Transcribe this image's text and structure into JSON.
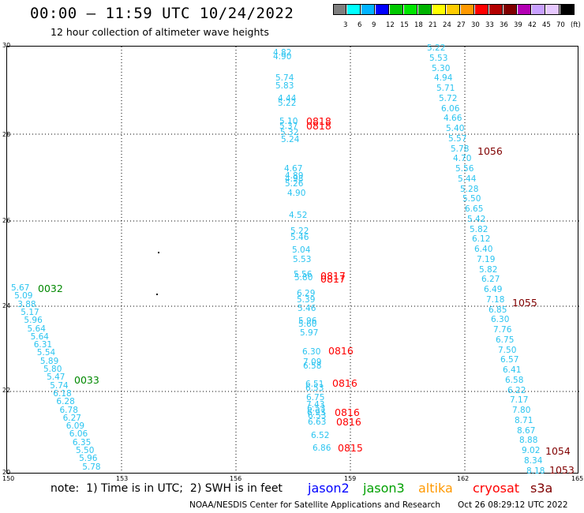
{
  "header": {
    "title": "00:00 – 11:59 UTC 10/24/2022",
    "subtitle": "12 hour collection of altimeter wave heights"
  },
  "legend": {
    "colors": [
      "#7f7f7f",
      "#00ffff",
      "#00b4ff",
      "#0000ff",
      "#00c800",
      "#00e600",
      "#00b400",
      "#ffff00",
      "#ffcc00",
      "#ff9900",
      "#ff0000",
      "#b40000",
      "#800000",
      "#b400b4",
      "#c8a0ff",
      "#e6c8ff",
      "#000000"
    ],
    "labels": [
      "3",
      "6",
      "9",
      "12",
      "15",
      "18",
      "21",
      "24",
      "27",
      "30",
      "33",
      "36",
      "39",
      "42",
      "45",
      "70",
      "(ft)"
    ]
  },
  "axes": {
    "x_ticks": [
      "150",
      "153",
      "156",
      "159",
      "162",
      "165"
    ],
    "y_ticks": [
      "30",
      "28",
      "26",
      "24",
      "22",
      "20"
    ]
  },
  "tracks": {
    "left": [
      "5.67",
      "5.09",
      "3.88",
      "5.17",
      "5.96",
      "5.64",
      "5.64",
      "6.31",
      "5.54",
      "5.89",
      "5.80",
      "5.47",
      "5.74",
      "6.18",
      "6.28",
      "6.78",
      "6.27",
      "6.09",
      "6.06",
      "6.35",
      "5.50",
      "5.96",
      "5.78"
    ],
    "middle": [
      "4.82",
      "4.90",
      "5.74",
      "5.83",
      "4.44",
      "5.22",
      "5.10",
      "5.37",
      "5.32",
      "5.24",
      "4.67",
      "4.89",
      "4.98",
      "5.26",
      "4.90",
      "4.52",
      "5.22",
      "5.46",
      "5.04",
      "5.53",
      "5.56",
      "5.80",
      "6.29",
      "5.39",
      "5.46",
      "5.96",
      "5.60",
      "5.97",
      "6.30",
      "7.09",
      "6.58",
      "6.51",
      "6.53",
      "6.75",
      "7.43",
      "6.53",
      "6.93",
      "6.53",
      "6.63",
      "6.52",
      "6.86"
    ],
    "right": [
      "5.22",
      "5.53",
      "5.30",
      "4.94",
      "5.71",
      "5.72",
      "6.06",
      "4.66",
      "5.40",
      "5.57",
      "5.78",
      "4.70",
      "5.56",
      "5.44",
      "5.28",
      "5.50",
      "6.65",
      "5.42",
      "5.82",
      "6.12",
      "6.40",
      "7.19",
      "5.82",
      "6.27",
      "6.49",
      "7.18",
      "6.85",
      "6.30",
      "7.76",
      "6.75",
      "7.50",
      "6.57",
      "6.41",
      "6.58",
      "6.22",
      "7.17",
      "7.80",
      "8.71",
      "8.67",
      "8.88",
      "9.02",
      "8.34",
      "8.18"
    ]
  },
  "times": {
    "jason3": [
      "0032",
      "0033"
    ],
    "cryosat": [
      "0818",
      "0818",
      "0817",
      "0817",
      "0816",
      "0816",
      "0816",
      "0816",
      "0815"
    ],
    "s3a": [
      "1056",
      "1055",
      "1054",
      "1053"
    ]
  },
  "note": "note:  1) Time is in UTC;  2) SWH is in feet",
  "missions": {
    "jason2": "jason2",
    "jason3": "jason3",
    "altika": "altika",
    "cryosat": "cryosat",
    "s3a": "s3a"
  },
  "footer": {
    "center": "NOAA/NESDIS Center for Satellite Applications and Research",
    "timestamp": "Oct 26 08:29:12 UTC 2022"
  }
}
